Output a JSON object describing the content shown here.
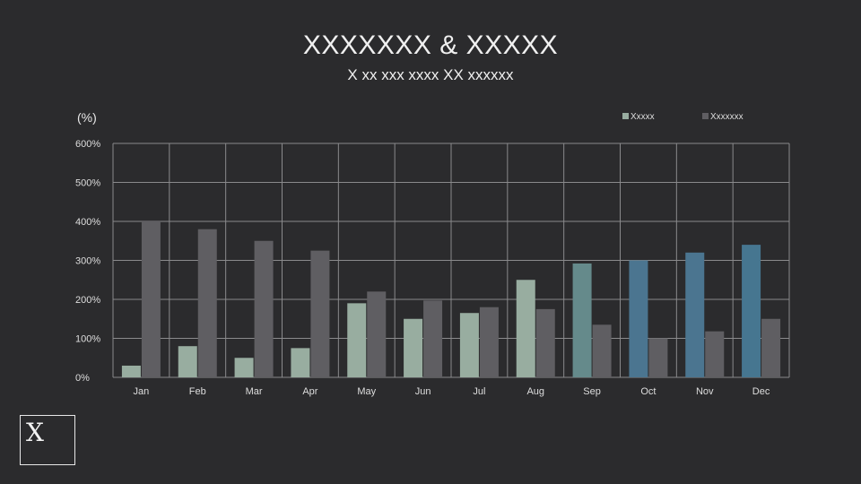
{
  "header": {
    "title": "XXXXXXX & XXXXX",
    "subtitle": "X xx xxx xxxx XX xxxxxx"
  },
  "logo": {
    "text": "X"
  },
  "chart_data": {
    "type": "bar",
    "y_unit_label": "(%)",
    "categories": [
      "Jan",
      "Feb",
      "Mar",
      "Apr",
      "May",
      "Jun",
      "Jul",
      "Aug",
      "Sep",
      "Oct",
      "Nov",
      "Dec"
    ],
    "series": [
      {
        "name": "Xxxxx",
        "values": [
          30,
          80,
          50,
          75,
          190,
          150,
          165,
          250,
          292,
          300,
          320,
          340
        ],
        "colors": [
          "#98ada0",
          "#98ada0",
          "#98ada0",
          "#98ada0",
          "#98ada0",
          "#98ada0",
          "#98ada0",
          "#98ada0",
          "#658a8b",
          "#4b7590",
          "#4b7590",
          "#467690"
        ],
        "legend_color": "#98ada0"
      },
      {
        "name": "Xxxxxxx",
        "values": [
          402,
          380,
          350,
          325,
          220,
          197,
          180,
          175,
          135,
          100,
          118,
          150
        ],
        "color": "#5f5e62"
      }
    ],
    "ylim": [
      0,
      600
    ],
    "y_ticks": [
      0,
      100,
      200,
      300,
      400,
      500,
      600
    ],
    "y_tick_labels": [
      "0%",
      "100%",
      "200%",
      "300%",
      "400%",
      "500%",
      "600%"
    ],
    "grid": true,
    "legend_position": "top-right"
  }
}
